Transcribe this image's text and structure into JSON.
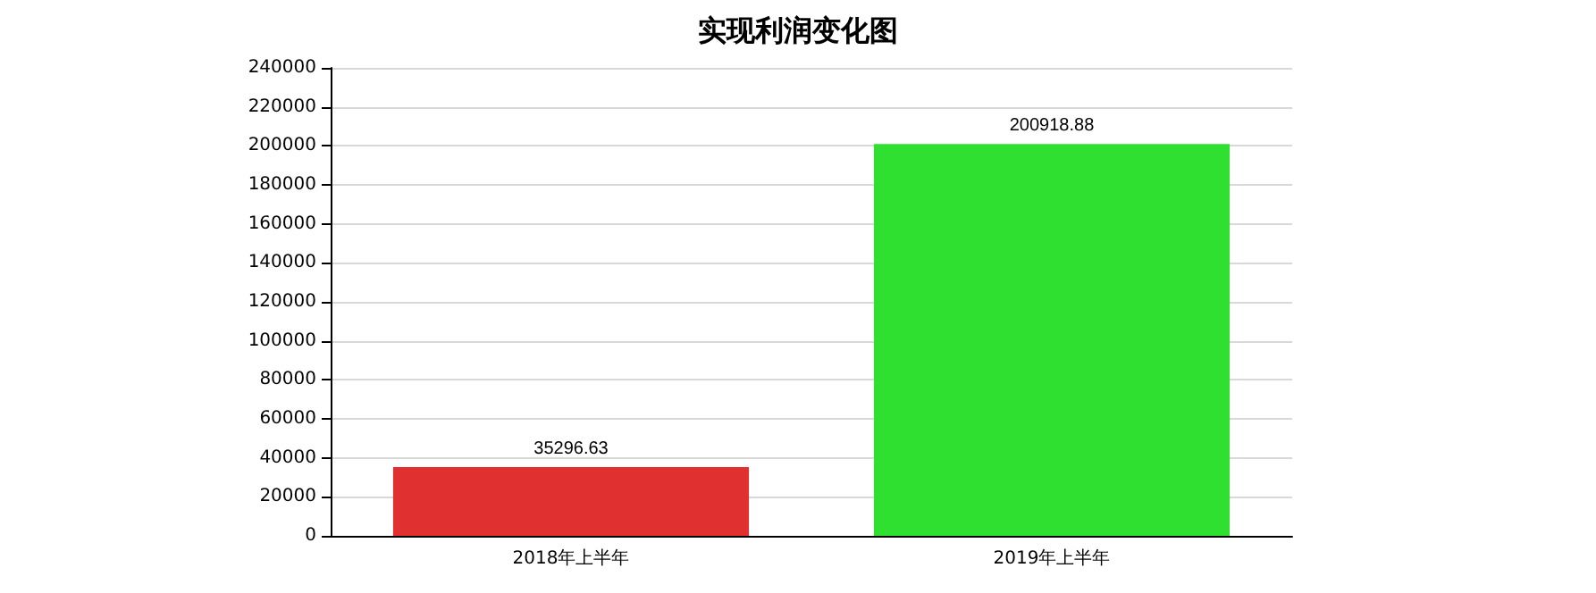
{
  "chart_data": {
    "type": "bar",
    "title": "实现利润变化图",
    "categories": [
      "2018年上半年",
      "2019年上半年"
    ],
    "values": [
      35296.63,
      200918.88
    ],
    "colors": [
      "#e03030",
      "#30e030"
    ],
    "ylim": [
      0,
      240000
    ],
    "yticks": [
      0,
      20000,
      40000,
      60000,
      80000,
      100000,
      120000,
      140000,
      160000,
      180000,
      200000,
      220000,
      240000
    ],
    "grid": "y",
    "data_labels": true
  }
}
